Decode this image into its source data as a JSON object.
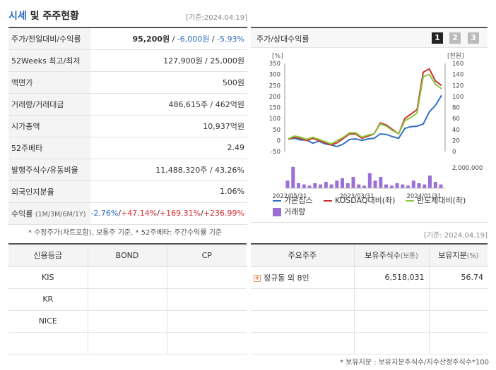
{
  "header": {
    "title_main": "시세",
    "title_rest": " 및 주주현황",
    "date": "[기준:2024.04.19]"
  },
  "quote_rows": [
    {
      "label": "주가/전일대비/수익률",
      "price": "95,200원",
      "sep1": " / ",
      "change": "-6,000원",
      "sep2": " / ",
      "rate": "-5.93%"
    },
    {
      "label": "52Weeks 최고/최저",
      "value": "127,900원 / 25,000원"
    },
    {
      "label": "액면가",
      "value": "500원"
    },
    {
      "label": "거래량/거래대금",
      "value": "486,615주 / 462억원"
    },
    {
      "label": "시가총액",
      "value": "10,937억원"
    },
    {
      "label": "52주베타",
      "value": "2.49"
    },
    {
      "label": "발행주식수/유동비율",
      "value": "11,488,320주 / 43.26%"
    },
    {
      "label": "외국인지분율",
      "value": "1.06%"
    },
    {
      "label": "수익률",
      "label_sub": "(1M/3M/6M/1Y)",
      "r1": "-2.76%",
      "r2": "+47.14%",
      "r3": "+169.31%",
      "r4": "+236.99%",
      "sep": "/"
    }
  ],
  "notes": {
    "left": "* 수정주가(차트포함), 보통주 기준, * 52주베타: 주간수익률 기준",
    "right_date": "[기준: 2024.04.19]",
    "footer": "* 보유지분 : 보유지분주식수/지수산정주식수*100"
  },
  "chart_panel": {
    "title": "주가/상대수익률",
    "pages": [
      "1",
      "2",
      "3"
    ]
  },
  "chart_data": {
    "type": "line",
    "left_axis_label": "[%]",
    "right_axis_label": "[천원]",
    "left_ticks": [
      350,
      300,
      250,
      200,
      150,
      100,
      50,
      0,
      -50
    ],
    "right_ticks": [
      160,
      140,
      120,
      100,
      80,
      60,
      40,
      20,
      0
    ],
    "volume_tick": "2,000,000",
    "x_ticks": [
      "2022/05/31",
      "2023/03/31",
      "2024/01/31"
    ],
    "ylim_left": [
      -50,
      350
    ],
    "ylim_right": [
      0,
      160
    ],
    "series": [
      {
        "name": "가온칩스",
        "color": "#2f6fc6",
        "axis": "right",
        "values": [
          23,
          24,
          21,
          21,
          15,
          19,
          14,
          12,
          9,
          14,
          22,
          23,
          20,
          23,
          24,
          32,
          31,
          27,
          24,
          42,
          45,
          46,
          50,
          72,
          84,
          102
        ]
      },
      {
        "name": "KOSDAQ대비(좌)",
        "color": "#c9302c",
        "axis": "left",
        "values": [
          5,
          15,
          10,
          0,
          10,
          0,
          -10,
          -20,
          -10,
          10,
          30,
          30,
          10,
          20,
          30,
          80,
          70,
          50,
          30,
          100,
          120,
          140,
          310,
          325,
          270,
          250
        ]
      },
      {
        "name": "반도체대비(좌)",
        "color": "#8cc63f",
        "axis": "left",
        "values": [
          8,
          20,
          15,
          5,
          15,
          5,
          -5,
          -15,
          0,
          15,
          35,
          35,
          15,
          25,
          30,
          75,
          65,
          45,
          30,
          90,
          105,
          125,
          290,
          300,
          255,
          235
        ]
      }
    ],
    "volume_name": "거래량",
    "volume_color": "#9b6fd6",
    "volume_values": [
      0.6,
      1.7,
      0.4,
      0.3,
      0.2,
      0.4,
      0.3,
      0.5,
      0.3,
      0.6,
      0.8,
      0.4,
      0.9,
      0.3,
      0.2,
      1.2,
      0.6,
      0.9,
      0.3,
      0.2,
      0.4,
      0.3,
      0.2,
      0.6,
      0.4,
      0.3,
      1.0,
      0.5,
      0.3
    ]
  },
  "credit_table": {
    "headers": [
      "신용등급",
      "BOND",
      "CP"
    ],
    "rows": [
      [
        "KIS",
        "",
        ""
      ],
      [
        "KR",
        "",
        ""
      ],
      [
        "NICE",
        "",
        ""
      ],
      [
        "",
        "",
        ""
      ]
    ]
  },
  "holders_table": {
    "headers": [
      "주요주주",
      "보유주식수",
      "(보통)",
      "보유지분",
      "(%)"
    ],
    "rows": [
      {
        "name": "정규동 외 8인",
        "shares": "6,518,031",
        "pct": "56.74"
      },
      {
        "name": "",
        "shares": "",
        "pct": ""
      },
      {
        "name": "",
        "shares": "",
        "pct": ""
      },
      {
        "name": "",
        "shares": "",
        "pct": ""
      }
    ]
  }
}
